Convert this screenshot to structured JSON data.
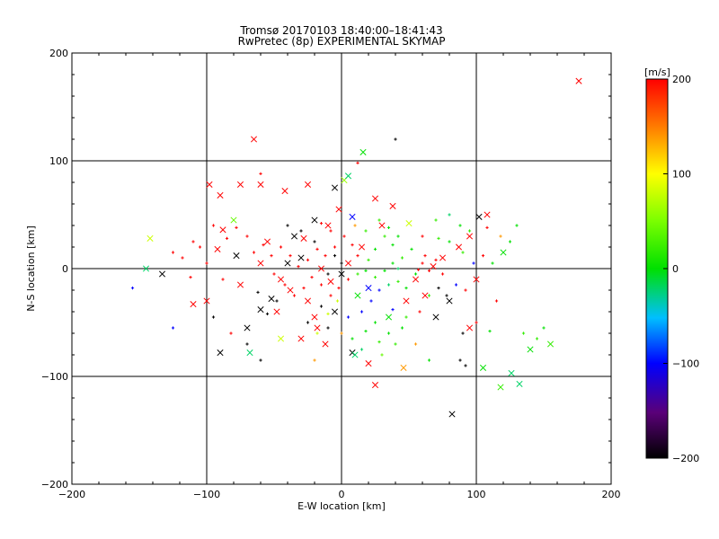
{
  "chart_data": {
    "type": "scatter",
    "title": "Tromsø 20170103 18:40:00–18:41:43",
    "subtitle": "RwPretec (8p) EXPERIMENTAL SKYMAP",
    "xlabel": "E-W location [km]",
    "ylabel": "N-S location [km]",
    "xlim": [
      -200,
      200
    ],
    "ylim": [
      -200,
      200
    ],
    "xticks": [
      -200,
      -100,
      0,
      100,
      200
    ],
    "yticks": [
      -200,
      -100,
      0,
      100,
      200
    ],
    "grid": true,
    "colorbar": {
      "label": "[m/s]",
      "range": [
        -200,
        200
      ],
      "ticks": [
        -200,
        -100,
        0,
        100,
        200
      ],
      "colormap": "rainbow: black-purple-blue-cyan-green-yellow-orange-red"
    },
    "series": [
      {
        "marker": "x",
        "points": [
          [
            176,
            174,
            200
          ],
          [
            -65,
            120,
            200
          ],
          [
            16,
            108,
            0
          ],
          [
            -98,
            78,
            200
          ],
          [
            -75,
            78,
            200
          ],
          [
            -60,
            78,
            200
          ],
          [
            -42,
            72,
            200
          ],
          [
            -25,
            78,
            200
          ],
          [
            2,
            82,
            60
          ],
          [
            5,
            86,
            -20
          ],
          [
            -5,
            75,
            -200
          ],
          [
            -90,
            68,
            200
          ],
          [
            -88,
            36,
            200
          ],
          [
            -92,
            18,
            200
          ],
          [
            -142,
            28,
            80
          ],
          [
            -133,
            -5,
            -200
          ],
          [
            -145,
            0,
            -20
          ],
          [
            -100,
            -30,
            200
          ],
          [
            -110,
            -33,
            200
          ],
          [
            -90,
            -78,
            -200
          ],
          [
            -70,
            -55,
            -200
          ],
          [
            -48,
            -40,
            200
          ],
          [
            -20,
            -45,
            200
          ],
          [
            -18,
            -55,
            200
          ],
          [
            -30,
            -65,
            200
          ],
          [
            -45,
            -65,
            80
          ],
          [
            -68,
            -78,
            -20
          ],
          [
            -12,
            -70,
            200
          ],
          [
            8,
            -78,
            -200
          ],
          [
            10,
            -80,
            -20
          ],
          [
            20,
            -88,
            200
          ],
          [
            25,
            -108,
            200
          ],
          [
            46,
            -92,
            140
          ],
          [
            82,
            -135,
            -200
          ],
          [
            105,
            -92,
            0
          ],
          [
            118,
            -110,
            20
          ],
          [
            126,
            -97,
            -20
          ],
          [
            132,
            -107,
            -20
          ],
          [
            140,
            -75,
            0
          ],
          [
            155,
            -70,
            20
          ],
          [
            -80,
            45,
            40
          ],
          [
            -55,
            25,
            200
          ],
          [
            -60,
            -38,
            -200
          ],
          [
            -38,
            -20,
            200
          ],
          [
            -52,
            -28,
            -200
          ],
          [
            38,
            58,
            200
          ],
          [
            25,
            65,
            200
          ],
          [
            50,
            42,
            80
          ],
          [
            -30,
            10,
            -200
          ],
          [
            -15,
            0,
            200
          ],
          [
            -8,
            -12,
            200
          ],
          [
            12,
            -25,
            0
          ],
          [
            20,
            -18,
            -100
          ],
          [
            35,
            -45,
            0
          ],
          [
            48,
            -30,
            200
          ],
          [
            62,
            -25,
            200
          ],
          [
            68,
            2,
            200
          ],
          [
            75,
            10,
            200
          ],
          [
            80,
            -30,
            -200
          ],
          [
            87,
            20,
            200
          ],
          [
            95,
            30,
            200
          ],
          [
            100,
            -10,
            200
          ],
          [
            120,
            15,
            0
          ],
          [
            108,
            50,
            200
          ],
          [
            102,
            48,
            -200
          ],
          [
            -20,
            45,
            -200
          ],
          [
            -10,
            40,
            200
          ],
          [
            30,
            40,
            200
          ],
          [
            -25,
            -30,
            200
          ],
          [
            -5,
            -40,
            -200
          ],
          [
            0,
            -5,
            -200
          ],
          [
            5,
            5,
            200
          ],
          [
            15,
            20,
            200
          ],
          [
            -40,
            5,
            -200
          ],
          [
            -45,
            -10,
            200
          ],
          [
            -28,
            28,
            200
          ],
          [
            -35,
            30,
            -200
          ],
          [
            -2,
            55,
            200
          ],
          [
            8,
            48,
            -100
          ],
          [
            55,
            -10,
            200
          ],
          [
            -60,
            5,
            200
          ],
          [
            -75,
            -15,
            200
          ],
          [
            95,
            -55,
            200
          ],
          [
            70,
            -45,
            -200
          ],
          [
            -78,
            12,
            -200
          ]
        ]
      },
      {
        "marker": "+",
        "points": [
          [
            40,
            120,
            -200
          ],
          [
            12,
            98,
            200
          ],
          [
            -60,
            88,
            200
          ],
          [
            -155,
            -18,
            -100
          ],
          [
            -125,
            -55,
            -100
          ],
          [
            -118,
            10,
            200
          ],
          [
            -105,
            20,
            200
          ],
          [
            -100,
            5,
            200
          ],
          [
            -95,
            -45,
            -200
          ],
          [
            -82,
            -60,
            200
          ],
          [
            -70,
            -70,
            -200
          ],
          [
            -60,
            -85,
            -200
          ],
          [
            -20,
            -85,
            140
          ],
          [
            15,
            -75,
            -20
          ],
          [
            28,
            -68,
            20
          ],
          [
            35,
            -60,
            0
          ],
          [
            40,
            -70,
            20
          ],
          [
            30,
            -80,
            40
          ],
          [
            45,
            -55,
            0
          ],
          [
            55,
            -70,
            140
          ],
          [
            65,
            -85,
            0
          ],
          [
            90,
            -60,
            -200
          ],
          [
            88,
            -85,
            -200
          ],
          [
            92,
            -90,
            -200
          ],
          [
            100,
            -50,
            200
          ],
          [
            110,
            -58,
            0
          ],
          [
            135,
            -60,
            20
          ],
          [
            145,
            -65,
            20
          ],
          [
            150,
            -55,
            0
          ],
          [
            115,
            -30,
            200
          ],
          [
            108,
            38,
            200
          ],
          [
            118,
            30,
            140
          ],
          [
            130,
            40,
            0
          ],
          [
            125,
            25,
            0
          ],
          [
            105,
            12,
            200
          ],
          [
            95,
            35,
            20
          ],
          [
            88,
            40,
            0
          ],
          [
            80,
            50,
            -20
          ],
          [
            70,
            45,
            20
          ],
          [
            60,
            30,
            200
          ],
          [
            52,
            18,
            0
          ],
          [
            45,
            10,
            20
          ],
          [
            38,
            22,
            0
          ],
          [
            32,
            30,
            20
          ],
          [
            25,
            18,
            0
          ],
          [
            20,
            8,
            20
          ],
          [
            12,
            12,
            200
          ],
          [
            8,
            22,
            200
          ],
          [
            2,
            30,
            200
          ],
          [
            -5,
            20,
            200
          ],
          [
            -12,
            12,
            200
          ],
          [
            -18,
            18,
            200
          ],
          [
            -25,
            8,
            200
          ],
          [
            -32,
            2,
            200
          ],
          [
            -38,
            12,
            200
          ],
          [
            -45,
            20,
            200
          ],
          [
            -52,
            12,
            200
          ],
          [
            -58,
            22,
            200
          ],
          [
            -65,
            15,
            200
          ],
          [
            -70,
            30,
            200
          ],
          [
            -78,
            38,
            200
          ],
          [
            -85,
            28,
            200
          ],
          [
            -50,
            -5,
            200
          ],
          [
            -42,
            -15,
            200
          ],
          [
            -35,
            -25,
            200
          ],
          [
            -28,
            -18,
            200
          ],
          [
            -22,
            -8,
            200
          ],
          [
            -15,
            -15,
            200
          ],
          [
            -8,
            -25,
            200
          ],
          [
            -2,
            -18,
            200
          ],
          [
            5,
            -10,
            200
          ],
          [
            12,
            -5,
            20
          ],
          [
            18,
            -2,
            0
          ],
          [
            25,
            -8,
            20
          ],
          [
            32,
            -2,
            0
          ],
          [
            38,
            5,
            0
          ],
          [
            42,
            -12,
            20
          ],
          [
            48,
            -18,
            0
          ],
          [
            55,
            -5,
            0
          ],
          [
            60,
            5,
            200
          ],
          [
            65,
            -2,
            200
          ],
          [
            70,
            8,
            200
          ],
          [
            75,
            -5,
            200
          ],
          [
            62,
            12,
            200
          ],
          [
            57,
            -1,
            200
          ],
          [
            -10,
            -5,
            -200
          ],
          [
            0,
            5,
            -200
          ],
          [
            -5,
            12,
            -200
          ],
          [
            -20,
            25,
            -200
          ],
          [
            -30,
            35,
            -200
          ],
          [
            -40,
            40,
            -200
          ],
          [
            -48,
            -30,
            -200
          ],
          [
            -55,
            -42,
            -200
          ],
          [
            -62,
            -22,
            -200
          ],
          [
            -15,
            -35,
            -200
          ],
          [
            -25,
            -50,
            -200
          ],
          [
            -10,
            -55,
            -200
          ],
          [
            5,
            -45,
            -100
          ],
          [
            15,
            -40,
            -100
          ],
          [
            22,
            -30,
            -100
          ],
          [
            28,
            -20,
            -100
          ],
          [
            35,
            -15,
            -20
          ],
          [
            42,
            0,
            -20
          ],
          [
            18,
            35,
            20
          ],
          [
            28,
            45,
            20
          ],
          [
            35,
            38,
            0
          ],
          [
            42,
            30,
            0
          ],
          [
            10,
            40,
            140
          ],
          [
            -8,
            35,
            200
          ],
          [
            -15,
            42,
            200
          ],
          [
            -3,
            -30,
            80
          ],
          [
            -10,
            -42,
            80
          ],
          [
            -18,
            -60,
            80
          ],
          [
            0,
            -60,
            140
          ],
          [
            8,
            -65,
            0
          ],
          [
            25,
            -50,
            0
          ],
          [
            18,
            -58,
            0
          ],
          [
            38,
            -38,
            -100
          ],
          [
            48,
            -45,
            20
          ],
          [
            58,
            -40,
            200
          ],
          [
            65,
            -25,
            20
          ],
          [
            72,
            -18,
            -200
          ],
          [
            78,
            -25,
            -200
          ],
          [
            85,
            -15,
            -100
          ],
          [
            92,
            -20,
            200
          ],
          [
            98,
            5,
            -100
          ],
          [
            112,
            5,
            0
          ],
          [
            90,
            15,
            20
          ],
          [
            80,
            25,
            0
          ],
          [
            72,
            28,
            20
          ],
          [
            -88,
            -10,
            200
          ],
          [
            -112,
            -8,
            200
          ],
          [
            -125,
            15,
            200
          ],
          [
            -110,
            25,
            200
          ],
          [
            -95,
            40,
            200
          ]
        ]
      }
    ]
  }
}
